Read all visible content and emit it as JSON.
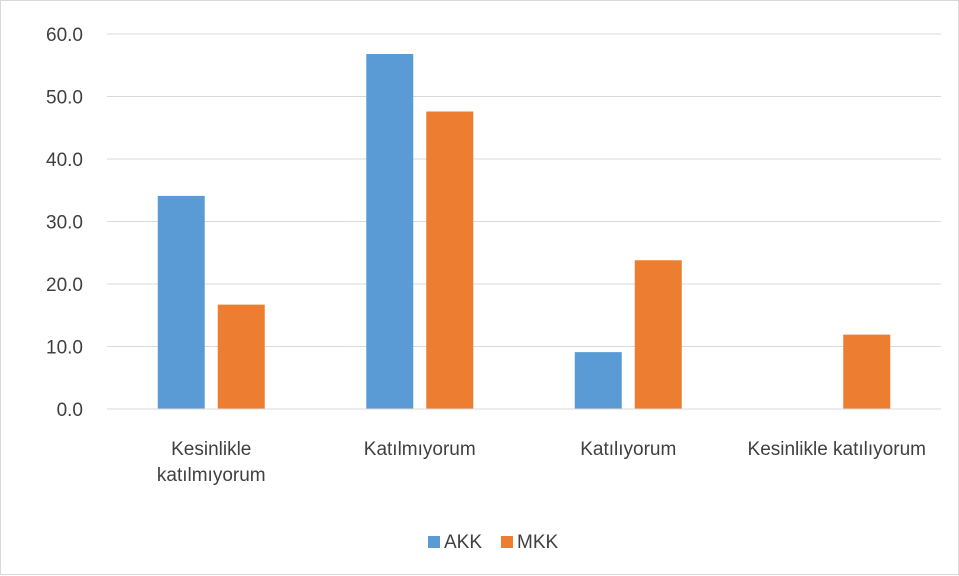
{
  "chart_data": {
    "type": "bar",
    "categories": [
      [
        "Kesinlikle",
        "katılmıyorum"
      ],
      [
        "Katılmıyorum"
      ],
      [
        "Katılıyorum"
      ],
      [
        "Kesinlikle katılıyorum"
      ]
    ],
    "series": [
      {
        "name": "AKK",
        "color": "#5b9bd5",
        "values": [
          34.1,
          56.8,
          9.1,
          0.0
        ]
      },
      {
        "name": "MKK",
        "color": "#ed7d31",
        "values": [
          16.7,
          47.6,
          23.8,
          11.9
        ]
      }
    ],
    "y_ticks": [
      "0.0",
      "10.0",
      "20.0",
      "30.0",
      "40.0",
      "50.0",
      "60.0"
    ],
    "ylim": [
      0,
      60
    ],
    "grid": true,
    "legend": "bottom",
    "title": "",
    "xlabel": "",
    "ylabel": ""
  }
}
